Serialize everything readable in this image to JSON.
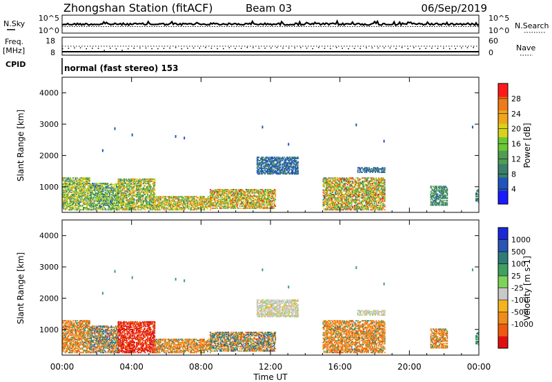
{
  "header": {
    "station": "Zhongshan Station (fitACF)",
    "beam": "Beam 03",
    "date": "06/Sep/2019"
  },
  "noise_panel": {
    "left_label": "N.Sky",
    "right_label": "N.Search",
    "left_ticks": [
      "10^5",
      "10^0"
    ],
    "right_ticks": [
      "10^5",
      "10^0"
    ]
  },
  "freq_panel": {
    "left_label_1": "Freq.",
    "left_label_2": "[MHz]",
    "right_label": "Nave",
    "left_ticks": [
      "18",
      "8"
    ],
    "right_ticks": [
      "60",
      "0"
    ]
  },
  "cpid_panel": {
    "label": "CPID",
    "mode_text": "normal (fast stereo) 153"
  },
  "colors": {
    "power": [
      "#1a1aff",
      "#2255bb",
      "#3a7f6a",
      "#4f9c55",
      "#6cc832",
      "#d9d21a",
      "#f2a51a",
      "#ee7a1a",
      "#ff1a1a"
    ],
    "velocity": [
      "#e01010",
      "#f05a10",
      "#f08c1a",
      "#f5b41e",
      "#c8c8c8",
      "#7ed25a",
      "#3fa060",
      "#2e7c78",
      "#2a55b5",
      "#1a28d8"
    ]
  },
  "chart_data": [
    {
      "type": "heatmap",
      "name": "power",
      "ylabel": "Slant Range [km]",
      "ylim": [
        180,
        4500
      ],
      "yticks": [
        "1000",
        "2000",
        "3000",
        "4000"
      ],
      "xlim": [
        0,
        24
      ],
      "colorbar_label": "Power [dB]",
      "colorbar_ticks": [
        "4",
        "8",
        "12",
        "16",
        "20",
        "24",
        "28"
      ],
      "colorbar_range": [
        0,
        32
      ],
      "regions": [
        {
          "t": [
            0.0,
            1.6
          ],
          "r": [
            250,
            1300
          ],
          "p": [
            8,
            24
          ]
        },
        {
          "t": [
            1.6,
            3.2
          ],
          "r": [
            250,
            1100
          ],
          "p": [
            6,
            22
          ]
        },
        {
          "t": [
            3.2,
            5.3
          ],
          "r": [
            250,
            1250
          ],
          "p": [
            8,
            26
          ]
        },
        {
          "t": [
            5.3,
            8.5
          ],
          "r": [
            250,
            700
          ],
          "p": [
            10,
            28
          ]
        },
        {
          "t": [
            8.5,
            12.3
          ],
          "r": [
            300,
            900
          ],
          "p": [
            10,
            30
          ]
        },
        {
          "t": [
            11.2,
            13.6
          ],
          "r": [
            1400,
            1950
          ],
          "p": [
            4,
            10
          ]
        },
        {
          "t": [
            15.0,
            18.6
          ],
          "r": [
            250,
            1300
          ],
          "p": [
            8,
            30
          ]
        },
        {
          "t": [
            17.0,
            18.6
          ],
          "r": [
            1450,
            1600
          ],
          "p": [
            4,
            10
          ]
        },
        {
          "t": [
            21.2,
            22.2
          ],
          "r": [
            400,
            1000
          ],
          "p": [
            6,
            14
          ]
        },
        {
          "t": [
            23.8,
            24.0
          ],
          "r": [
            500,
            900
          ],
          "p": [
            6,
            14
          ]
        }
      ]
    },
    {
      "type": "heatmap",
      "name": "velocity",
      "ylabel": "Slant Range [km]",
      "ylim": [
        180,
        4500
      ],
      "yticks": [
        "1000",
        "2000",
        "3000",
        "4000"
      ],
      "xlim": [
        0,
        24
      ],
      "colorbar_label": "Velocity [m s-1]",
      "colorbar_ticks": [
        "1000",
        "500",
        "100",
        "25",
        "-25",
        "-100",
        "-500",
        "-1000"
      ],
      "regions": [
        {
          "t": [
            0.0,
            1.6
          ],
          "r": [
            250,
            1300
          ],
          "v": "orange"
        },
        {
          "t": [
            1.6,
            3.2
          ],
          "r": [
            250,
            1100
          ],
          "v": "mixed"
        },
        {
          "t": [
            3.2,
            5.3
          ],
          "r": [
            250,
            1250
          ],
          "v": "red"
        },
        {
          "t": [
            5.3,
            8.5
          ],
          "r": [
            250,
            700
          ],
          "v": "orange"
        },
        {
          "t": [
            8.5,
            12.3
          ],
          "r": [
            300,
            900
          ],
          "v": "mixed"
        },
        {
          "t": [
            11.2,
            13.6
          ],
          "r": [
            1400,
            1950
          ],
          "v": "grey"
        },
        {
          "t": [
            15.0,
            18.6
          ],
          "r": [
            250,
            1300
          ],
          "v": "orange"
        },
        {
          "t": [
            17.0,
            18.6
          ],
          "r": [
            1450,
            1600
          ],
          "v": "grey"
        },
        {
          "t": [
            21.2,
            22.2
          ],
          "r": [
            400,
            1000
          ],
          "v": "orange"
        },
        {
          "t": [
            23.8,
            24.0
          ],
          "r": [
            500,
            900
          ],
          "v": "green"
        }
      ]
    }
  ],
  "x_axis": {
    "tick_labels": [
      "00:00",
      "04:00",
      "08:00",
      "12:00",
      "16:00",
      "20:00",
      "00:00"
    ],
    "label": "Time UT"
  }
}
